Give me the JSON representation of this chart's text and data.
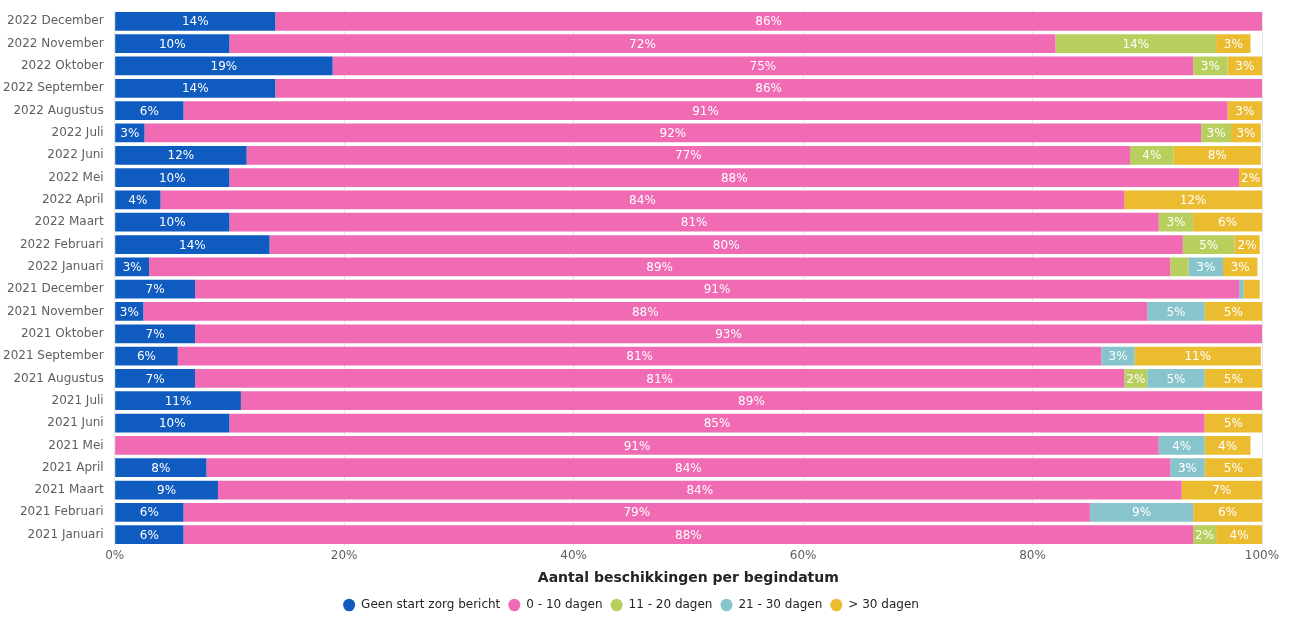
{
  "chart_data": {
    "type": "bar",
    "orientation": "horizontal",
    "stacked": true,
    "xlabel": "Aantal beschikkingen per begindatum",
    "categories": [
      "2022 December",
      "2022 November",
      "2022 Oktober",
      "2022 September",
      "2022 Augustus",
      "2022 Juli",
      "2022 Juni",
      "2022 Mei",
      "2022 April",
      "2022 Maart",
      "2022 Februari",
      "2022 Januari",
      "2021 December",
      "2021 November",
      "2021 Oktober",
      "2021 September",
      "2021 Augustus",
      "2021 Juli",
      "2021 Juni",
      "2021 Mei",
      "2021 April",
      "2021 Maart",
      "2021 Februari",
      "2021 Januari"
    ],
    "xlim": [
      0,
      100
    ],
    "xticks": [
      {
        "value": 0,
        "label": "0%"
      },
      {
        "value": 20,
        "label": "20%"
      },
      {
        "value": 40,
        "label": "40%"
      },
      {
        "value": 60,
        "label": "60%"
      },
      {
        "value": 80,
        "label": "80%"
      },
      {
        "value": 100,
        "label": "100%"
      }
    ],
    "grid": "x",
    "legend": "bottom",
    "marker": "circle",
    "series": [
      {
        "name": "Geen start zorg bericht",
        "color": "#0f5bc0",
        "values": [
          14,
          10,
          19,
          14,
          6,
          2.6,
          11.5,
          10,
          4,
          10,
          13.5,
          3,
          7,
          2.5,
          7,
          5.5,
          7,
          11,
          10,
          null,
          8,
          9,
          6,
          6
        ],
        "value_labels": [
          "14%",
          "10%",
          "19%",
          "14%",
          "6%",
          "3%",
          "12%",
          "10%",
          "4%",
          "10%",
          "14%",
          "3%",
          "7%",
          "3%",
          "7%",
          "6%",
          "7%",
          "11%",
          "10%",
          null,
          "8%",
          "9%",
          "6%",
          "6%"
        ]
      },
      {
        "name": "0 - 10 dagen",
        "color": "#f06bb4",
        "values": [
          86,
          72,
          75,
          86,
          91,
          92.1,
          77,
          88,
          84,
          81,
          79.6,
          89,
          91,
          87.5,
          93,
          80.5,
          81,
          89,
          85,
          91,
          84,
          84,
          79,
          88
        ],
        "value_labels": [
          "86%",
          "72%",
          "75%",
          "86%",
          "91%",
          "92%",
          "77%",
          "88%",
          "84%",
          "81%",
          "80%",
          "89%",
          "91%",
          "88%",
          "93%",
          "81%",
          "81%",
          "89%",
          "85%",
          "91%",
          "84%",
          "84%",
          "79%",
          "88%"
        ]
      },
      {
        "name": "11 - 20 dagen",
        "color": "#b8cf5e",
        "values": [
          null,
          14,
          3,
          null,
          null,
          2.6,
          3.8,
          null,
          null,
          3,
          4.5,
          1.6,
          null,
          null,
          null,
          null,
          2,
          null,
          null,
          null,
          null,
          null,
          null,
          2
        ],
        "value_labels": [
          null,
          "14%",
          "3%",
          null,
          null,
          "3%",
          "4%",
          null,
          null,
          "3%",
          "5%",
          null,
          null,
          null,
          null,
          null,
          "2%",
          null,
          null,
          null,
          null,
          null,
          null,
          "2%"
        ]
      },
      {
        "name": "21 - 30 dagen",
        "color": "#88c4cc",
        "values": [
          null,
          null,
          null,
          null,
          null,
          null,
          null,
          null,
          null,
          null,
          null,
          3,
          0.4,
          5,
          null,
          2.9,
          5,
          null,
          null,
          4,
          3,
          null,
          9,
          null
        ],
        "value_labels": [
          null,
          null,
          null,
          null,
          null,
          null,
          null,
          null,
          null,
          null,
          null,
          "3%",
          null,
          "5%",
          null,
          "3%",
          "5%",
          null,
          null,
          "4%",
          "3%",
          null,
          "9%",
          null
        ]
      },
      {
        "name": "> 30 dagen",
        "color": "#ebbb30",
        "values": [
          null,
          3,
          3,
          null,
          3,
          2.6,
          7.6,
          2,
          12,
          6,
          2.2,
          3,
          1.4,
          5,
          null,
          11,
          5,
          null,
          5,
          4,
          5,
          7,
          6,
          4
        ],
        "value_labels": [
          null,
          "3%",
          "3%",
          null,
          "3%",
          "3%",
          "8%",
          "2%",
          "12%",
          "6%",
          "2%",
          "3%",
          null,
          "5%",
          null,
          "11%",
          "5%",
          null,
          "5%",
          "4%",
          "5%",
          "7%",
          "6%",
          "4%"
        ]
      }
    ]
  }
}
